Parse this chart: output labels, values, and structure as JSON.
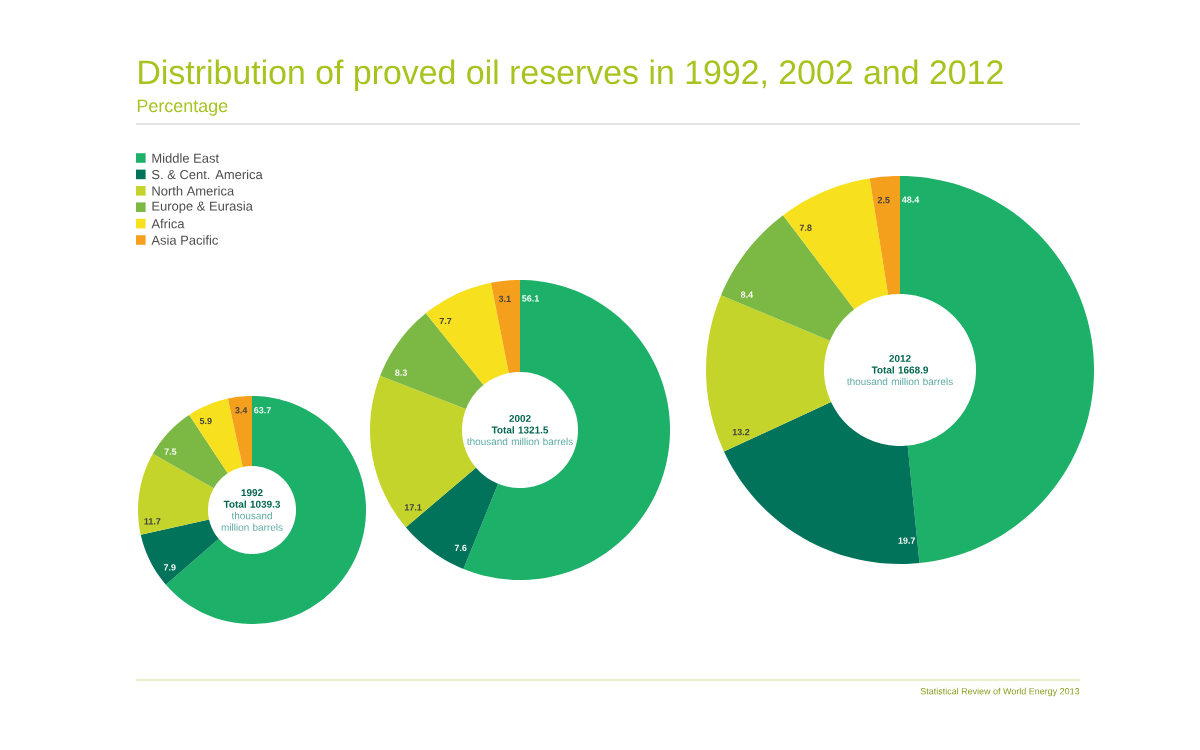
{
  "chart_data": [
    {
      "type": "donut",
      "title": "Distribution of proved oil reserves in 1992, 2002 and 2012",
      "subtitle": "Percentage",
      "legend": "top left",
      "data_labels": true,
      "categories": [
        "Middle East",
        "S. & Cent. America",
        "North America",
        "Europe & Eurasia",
        "Africa",
        "Asia Pacific"
      ],
      "values": [
        63.7,
        7.9,
        11.7,
        7.5,
        5.9,
        3.4
      ],
      "colors": [
        "#1cb068",
        "#00735a",
        "#c5d42a",
        "#7cb944",
        "#f7e11e",
        "#f5a01c"
      ],
      "annotations": [
        "1992",
        "Total 1039.3",
        "thousand million barrels"
      ]
    },
    {
      "type": "donut",
      "data_labels": true,
      "categories": [
        null,
        null,
        null,
        null,
        null,
        null
      ],
      "values": [
        56.1,
        7.6,
        17.1,
        8.3,
        7.7,
        3.1
      ],
      "colors": [
        "#1cb068",
        "#00735a",
        "#c5d42a",
        "#7cb944",
        "#f7e11e",
        "#f5a01c"
      ],
      "annotations": [
        "2002",
        "Total 1321.5",
        "thousand million barrels"
      ]
    },
    {
      "type": "donut",
      "data_labels": true,
      "categories": [
        null,
        null,
        null,
        null,
        null,
        null
      ],
      "values": [
        48.4,
        19.7,
        13.2,
        8.4,
        7.8,
        2.5
      ],
      "colors": [
        "#1cb068",
        "#00735a",
        "#c5d42a",
        "#7cb944",
        "#f7e11e",
        "#f5a01c"
      ],
      "annotations": [
        "2012",
        "Total 1668.9",
        "thousand million barrels",
        "Statistical Review of World Energy 2013"
      ]
    }
  ]
}
